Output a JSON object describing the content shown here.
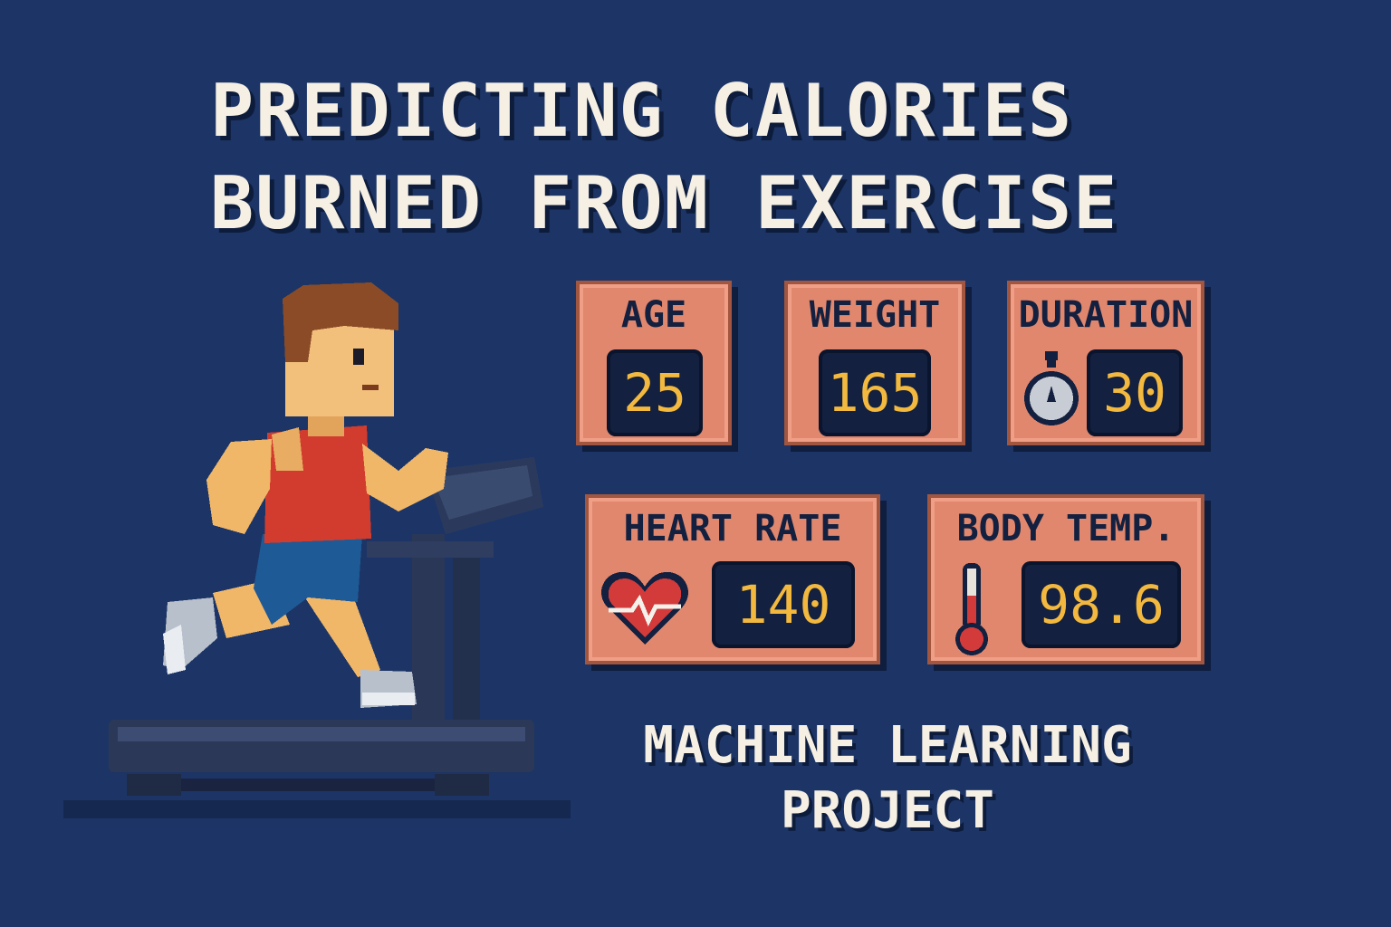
{
  "title": {
    "line1": "PREDICTING CALORIES",
    "line2": "BURNED FROM EXERCISE"
  },
  "cards": [
    {
      "label": "AGE",
      "value": "25"
    },
    {
      "label": "WEIGHT",
      "value": "165"
    },
    {
      "label": "DURATION",
      "value": "30",
      "icon": "stopwatch-icon"
    },
    {
      "label": "HEART RATE",
      "value": "140",
      "icon": "heart-icon"
    },
    {
      "label": "BODY TEMP.",
      "value": "98.6",
      "icon": "thermometer-icon"
    }
  ],
  "subtitle": {
    "line1": "MACHINE LEARNING",
    "line2": "PROJECT"
  },
  "colors": {
    "background": "#1c3566",
    "card": "#e0876e",
    "display": "#13203f",
    "digits": "#f3b93f",
    "text": "#f6f0e4"
  }
}
